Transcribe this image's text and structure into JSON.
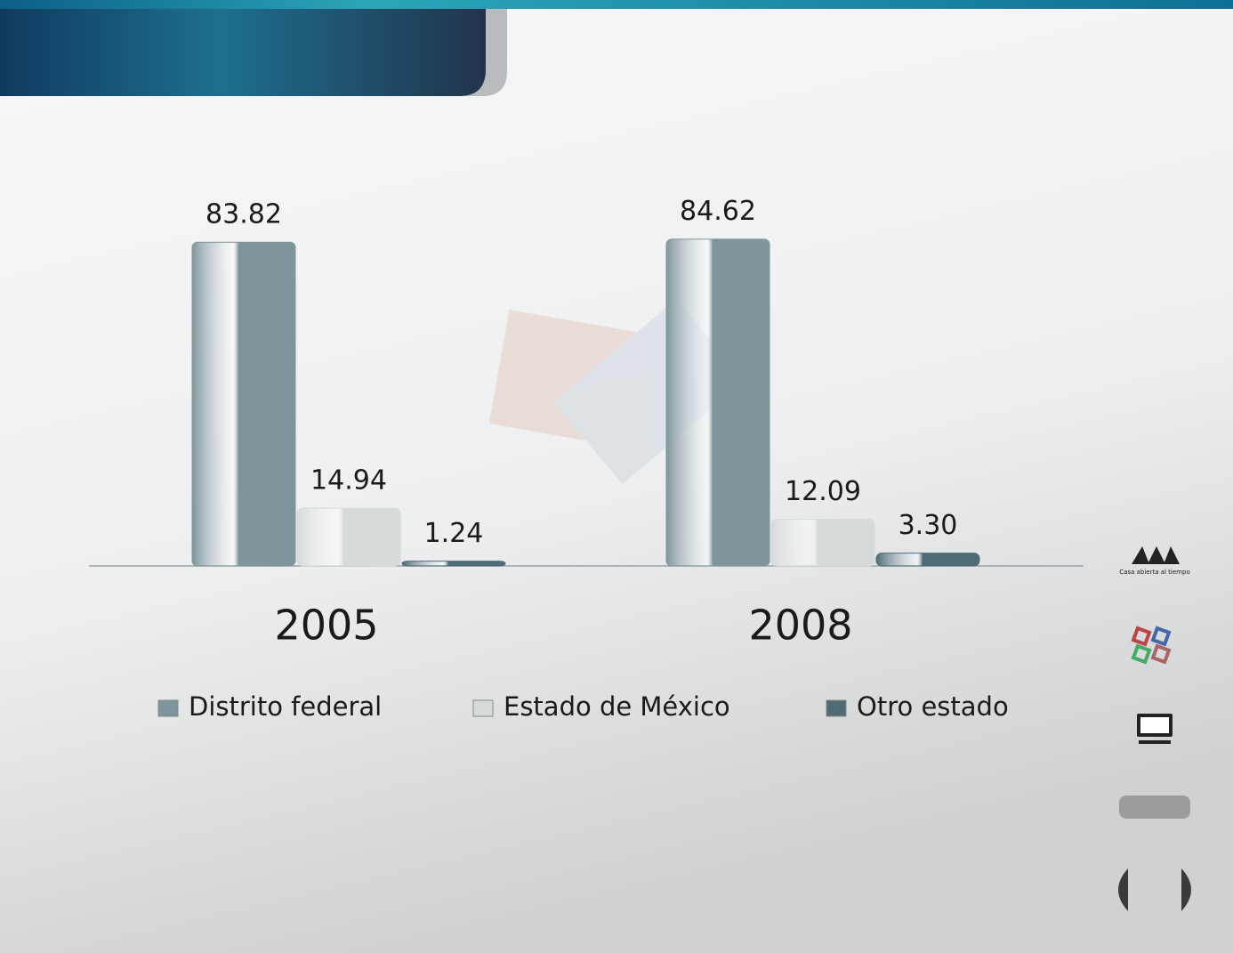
{
  "chart_data": {
    "type": "bar",
    "categories": [
      "2005",
      "2008"
    ],
    "series": [
      {
        "name": "Distrito federal",
        "color": "#7f959c",
        "values": [
          83.82,
          84.62
        ]
      },
      {
        "name": "Estado de México",
        "color": "#d6dada",
        "values": [
          14.94,
          12.09
        ]
      },
      {
        "name": "Otro estado",
        "color": "#4f6b75",
        "values": [
          1.24,
          3.3
        ],
        "value_labels": [
          "1.24",
          "3.30"
        ]
      }
    ],
    "ylim": [
      0,
      100
    ],
    "grid": false,
    "legend": "bottom"
  },
  "logo": {
    "caption": "Casa abierta al tiempo"
  }
}
